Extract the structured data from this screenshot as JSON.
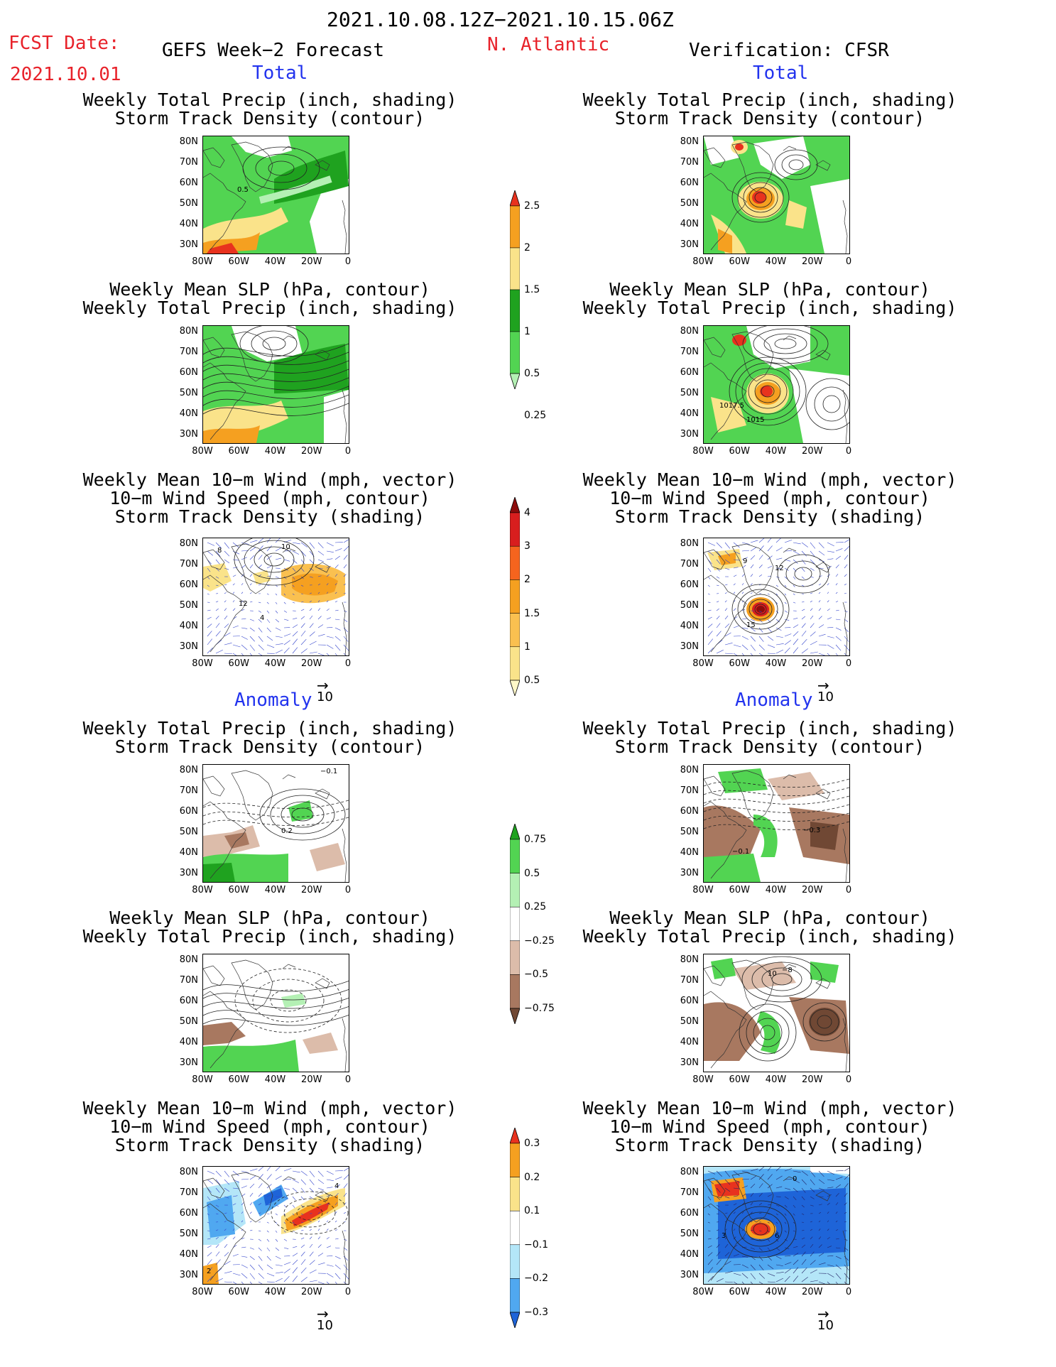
{
  "header": {
    "period": "2021.10.08.12Z−2021.10.15.06Z",
    "fcst_label": "FCST Date:",
    "fcst_date": "2021.10.01",
    "forecast_title": "GEFS Week−2 Forecast",
    "region": "N. Atlantic",
    "verification": "Verification: CFSR"
  },
  "sections": {
    "total": "Total",
    "anomaly": "Anomaly"
  },
  "titles": {
    "precip_track_1": "Weekly Total Precip (inch, shading)",
    "precip_track_2": "Storm Track Density (contour)",
    "slp_precip_1": "Weekly Mean SLP (hPa, contour)",
    "slp_precip_2": "Weekly Total Precip (inch, shading)",
    "wind_1": "Weekly Mean 10−m Wind (mph, vector)",
    "wind_2": "10−m Wind Speed (mph, contour)",
    "wind_3": "Storm Track Density (shading)"
  },
  "axes": {
    "lat_labels": [
      "80N",
      "70N",
      "60N",
      "50N",
      "40N",
      "30N"
    ],
    "lon_labels": [
      "80W",
      "60W",
      "40W",
      "20W",
      "0"
    ]
  },
  "vector_ref": "10",
  "colorbars": {
    "precip_total": {
      "labels": [
        "2.5",
        "2",
        "1.5",
        "1",
        "0.5",
        "0.25"
      ],
      "colors": [
        "#e8321e",
        "#f5a020",
        "#fae38a",
        "#1fa21f",
        "#52d452",
        "#b4f0b4"
      ]
    },
    "track_total": {
      "labels": [
        "4",
        "3",
        "2",
        "1.5",
        "1",
        "0.5"
      ],
      "colors": [
        "#8c0c0c",
        "#d81e1e",
        "#f5641e",
        "#f5a020",
        "#fac050",
        "#fae38a",
        "#fff8c8"
      ]
    },
    "precip_anom": {
      "labels": [
        "0.75",
        "0.5",
        "0.25",
        "−0.25",
        "−0.5",
        "−0.75"
      ],
      "colors": [
        "#1fa21f",
        "#52d452",
        "#b4f0b4",
        "#ffffff",
        "#dcbcaa",
        "#a87860",
        "#704834"
      ]
    },
    "track_anom": {
      "labels": [
        "0.3",
        "0.2",
        "0.1",
        "−0.1",
        "−0.2",
        "−0.3"
      ],
      "colors": [
        "#e8321e",
        "#f5a020",
        "#fae38a",
        "#ffffff",
        "#b4e6f8",
        "#50a8f0",
        "#1e64d8"
      ]
    }
  },
  "map_labels": {
    "l1": [
      "0.5"
    ],
    "r2": [
      "1017.5",
      "1015"
    ],
    "l3": [
      "8",
      "10",
      "12",
      "4"
    ],
    "r3": [
      "9",
      "12",
      "15"
    ],
    "l4": [
      "−0.1",
      "0.2"
    ],
    "r4": [
      "−0.3",
      "−0.1"
    ],
    "r5": [
      "10",
      "−8"
    ],
    "l6": [
      "4",
      "2"
    ],
    "r6": [
      "0",
      "3",
      "6"
    ]
  },
  "colors": {
    "red_text": "#e8222a",
    "blue_text": "#2233ee"
  }
}
